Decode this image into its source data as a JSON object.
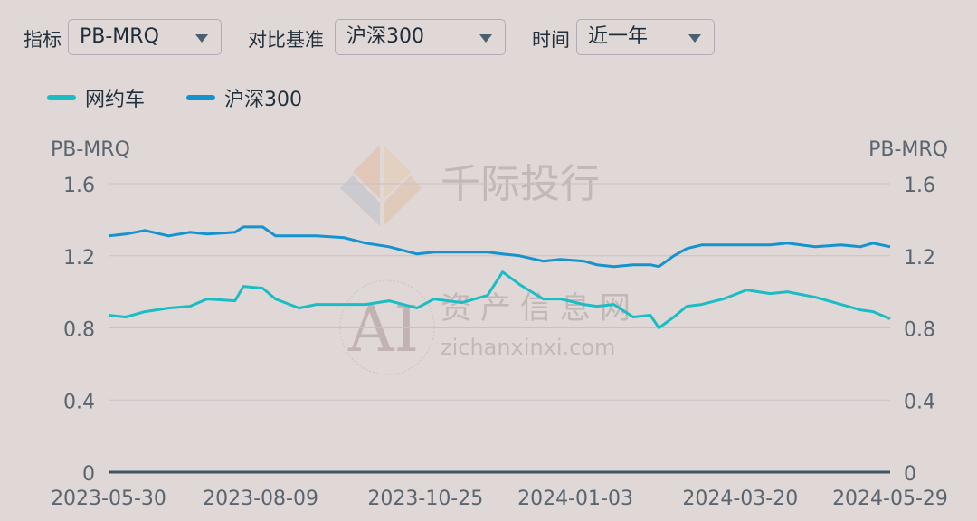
{
  "controls": {
    "metric": {
      "label": "指标",
      "value": "PB-MRQ"
    },
    "benchmark": {
      "label": "对比基准",
      "value": "沪深300"
    },
    "period": {
      "label": "时间",
      "value": "近一年"
    }
  },
  "watermark": {
    "brand": "千际投行",
    "site_cn": "资产信息网",
    "site_url": "zichanxinxi.com",
    "logo_text": "AI"
  },
  "colors": {
    "网约车": "#1bbdc4",
    "沪深300": "#1593cf",
    "grid": "#c9c0c8",
    "axis": "#3f5566",
    "text": "#5a6570"
  },
  "chart_data": {
    "type": "line",
    "title": "",
    "ylabel_left": "PB-MRQ",
    "ylabel_right": "PB-MRQ",
    "ylim": [
      0,
      1.6
    ],
    "yticks": [
      "0",
      "0.4",
      "0.8",
      "1.2",
      "1.6"
    ],
    "xticks": [
      "2023-05-30",
      "2023-08-09",
      "2023-10-25",
      "2024-01-03",
      "2024-03-20",
      "2024-05-29"
    ],
    "grid": true,
    "legend_placement": "top-left",
    "x": [
      "2023-05-30",
      "2023-06-07",
      "2023-06-16",
      "2023-06-27",
      "2023-07-07",
      "2023-07-15",
      "2023-07-28",
      "2023-08-01",
      "2023-08-10",
      "2023-08-16",
      "2023-08-27",
      "2023-09-04",
      "2023-09-17",
      "2023-09-27",
      "2023-10-08",
      "2023-10-21",
      "2023-10-29",
      "2023-11-11",
      "2023-11-23",
      "2023-11-30",
      "2023-12-08",
      "2023-12-19",
      "2023-12-27",
      "2024-01-07",
      "2024-01-13",
      "2024-01-21",
      "2024-01-30",
      "2024-02-07",
      "2024-02-11",
      "2024-02-18",
      "2024-02-24",
      "2024-03-02",
      "2024-03-12",
      "2024-03-23",
      "2024-04-03",
      "2024-04-11",
      "2024-04-24",
      "2024-05-06",
      "2024-05-15",
      "2024-05-21",
      "2024-05-29"
    ],
    "series": [
      {
        "name": "网约车",
        "values": [
          0.87,
          0.86,
          0.89,
          0.91,
          0.92,
          0.96,
          0.95,
          1.03,
          1.02,
          0.96,
          0.91,
          0.93,
          0.93,
          0.93,
          0.95,
          0.91,
          0.96,
          0.94,
          0.98,
          1.11,
          1.04,
          0.96,
          0.96,
          0.93,
          0.92,
          0.93,
          0.86,
          0.87,
          0.8,
          0.86,
          0.92,
          0.93,
          0.96,
          1.01,
          0.99,
          1.0,
          0.97,
          0.93,
          0.9,
          0.89,
          0.85
        ]
      },
      {
        "name": "沪深300",
        "values": [
          1.31,
          1.32,
          1.34,
          1.31,
          1.33,
          1.32,
          1.33,
          1.36,
          1.36,
          1.31,
          1.31,
          1.31,
          1.3,
          1.27,
          1.25,
          1.21,
          1.22,
          1.22,
          1.22,
          1.21,
          1.2,
          1.17,
          1.18,
          1.17,
          1.15,
          1.14,
          1.15,
          1.15,
          1.14,
          1.2,
          1.24,
          1.26,
          1.26,
          1.26,
          1.26,
          1.27,
          1.25,
          1.26,
          1.25,
          1.27,
          1.25
        ]
      }
    ]
  }
}
